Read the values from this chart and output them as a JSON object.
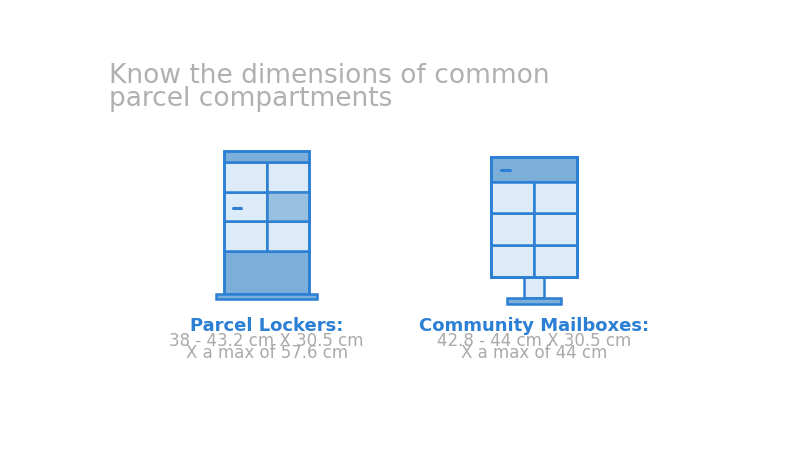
{
  "title_line1": "Know the dimensions of common",
  "title_line2": "parcel compartments",
  "title_color": "#b0b0b0",
  "title_fontsize": 19,
  "blue_dark": "#2B7FD4",
  "blue_mid": "#7BAFD9",
  "blue_light": "#DDEAF7",
  "blue_accent": "#5B9FD4",
  "label1": "Parcel Lockers:",
  "label1_color": "#2B7FD4",
  "desc1_line1": "38 - 43.2 cm X 30.5 cm",
  "desc1_line2": "X a max of 57.6 cm",
  "label2": "Community Mailboxes:",
  "label2_color": "#2B7FD4",
  "desc2_line1": "42.8 - 44 cm X 30.5 cm",
  "desc2_line2": "X a max of 44 cm",
  "desc_color": "#aaaaaa",
  "desc_fontsize": 12,
  "label_fontsize": 13
}
